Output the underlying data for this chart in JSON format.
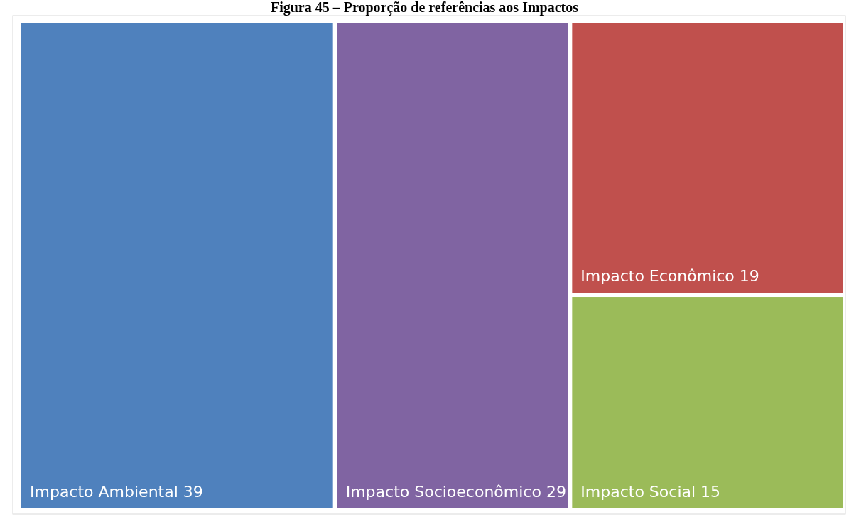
{
  "chart_data": {
    "type": "other",
    "title": "Figura 45 – Proporção de referências aos Impactos",
    "categories": [
      "Impacto Ambiental",
      "Impacto Socioeconômico",
      "Impacto Econômico",
      "Impacto Social"
    ],
    "values": [
      39,
      29,
      19,
      15
    ],
    "colors": [
      "#4f81bd",
      "#8064a2",
      "#c0504d",
      "#9bbb59"
    ],
    "data_labels": true
  }
}
